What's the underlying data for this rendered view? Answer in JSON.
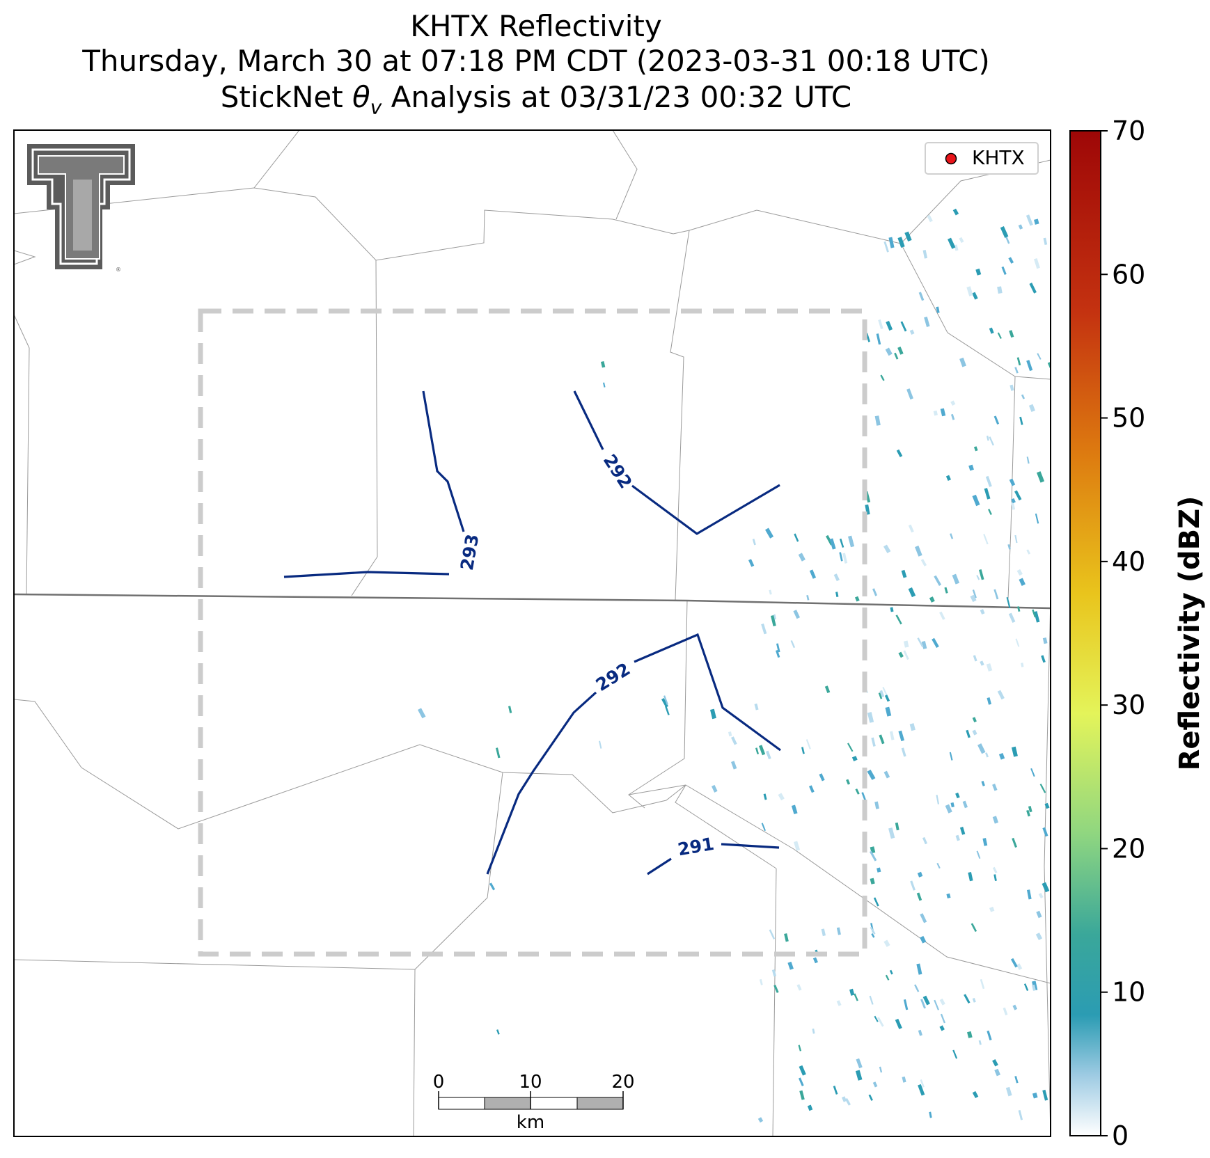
{
  "title": {
    "line1": "KHTX Reflectivity",
    "line2": "Thursday, March 30 at 07:18 PM CDT (2023-03-31 00:18 UTC)",
    "line3_prefix": "StickNet ",
    "line3_symbol": "θ",
    "line3_subscript": "v",
    "line3_suffix": " Analysis at 03/31/23 00:32 UTC"
  },
  "legend": {
    "label": "KHTX",
    "marker_color": "#e8141a"
  },
  "logo": {
    "text": "TT",
    "color": "#5b5b5b"
  },
  "colorbar": {
    "label": "Reflectivity (dBZ)",
    "min": 0,
    "max": 70,
    "ticks": [
      "0",
      "10",
      "20",
      "30",
      "40",
      "50",
      "60",
      "70"
    ],
    "colors": [
      "#ffffff",
      "#9ecbe3",
      "#2b9cb3",
      "#3aa79a",
      "#8fd680",
      "#e4f45a",
      "#e9c41c",
      "#dd7a10",
      "#c43210",
      "#9e0707"
    ]
  },
  "contours": [
    {
      "value": "293",
      "label": "293"
    },
    {
      "value": "292",
      "label": "292"
    },
    {
      "value": "292",
      "label": "292"
    },
    {
      "value": "291",
      "label": "291"
    }
  ],
  "scale_bar": {
    "ticks": [
      "0",
      "10",
      "20"
    ],
    "unit": "km"
  },
  "colors": {
    "contour": "#082a80",
    "domain_box": "#cccccc",
    "county_line": "#9a9a9a",
    "state_line": "#707070"
  }
}
